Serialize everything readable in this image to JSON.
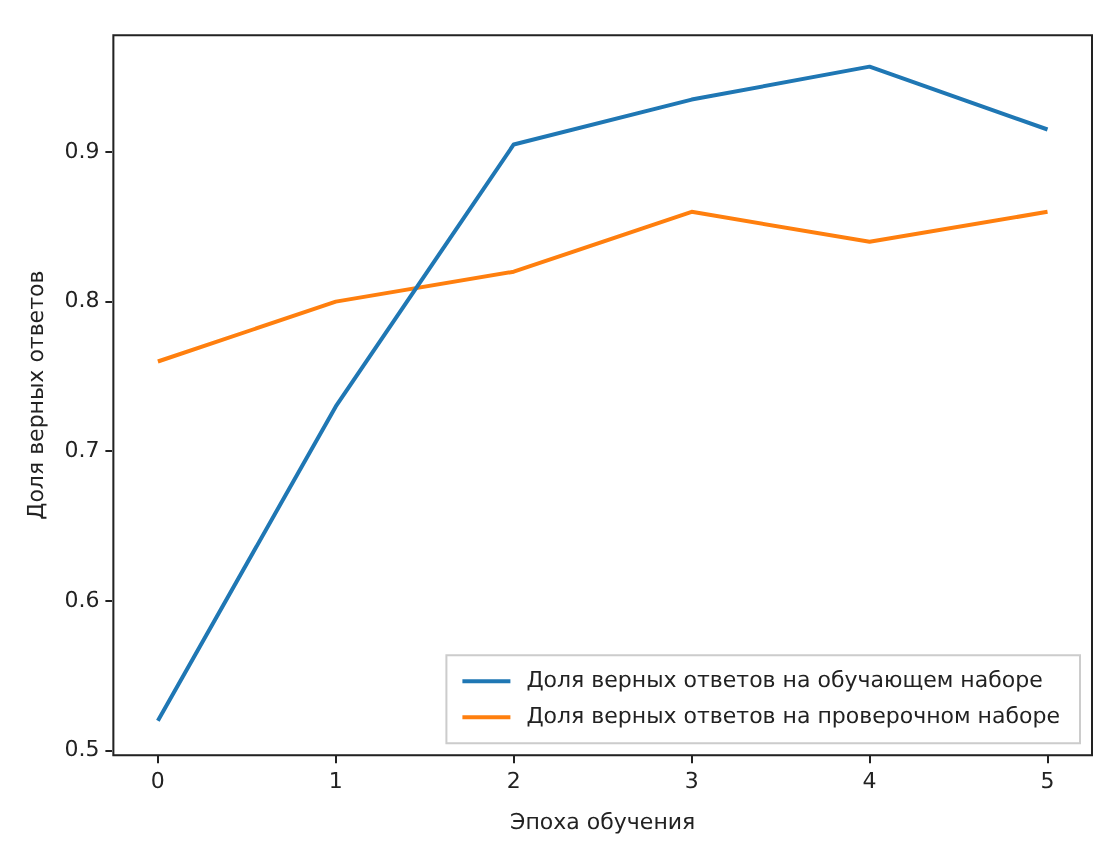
{
  "chart_data": {
    "type": "line",
    "xlabel": "Эпоха обучения",
    "ylabel": "Доля верных ответов",
    "x": [
      0,
      1,
      2,
      3,
      4,
      5
    ],
    "series": [
      {
        "name": "Доля верных ответов на обучающем наборе",
        "color": "#1f77b4",
        "values": [
          0.52,
          0.73,
          0.905,
          0.935,
          0.957,
          0.915
        ]
      },
      {
        "name": "Доля верных ответов на проверочном наборе",
        "color": "#ff7f0e",
        "values": [
          0.76,
          0.8,
          0.82,
          0.86,
          0.84,
          0.86
        ]
      }
    ],
    "xlim": [
      -0.25,
      5.25
    ],
    "ylim": [
      0.497,
      0.978
    ],
    "xticks": [
      0,
      1,
      2,
      3,
      4,
      5
    ],
    "yticks": [
      {
        "value": 0.5,
        "label": "0.5"
      },
      {
        "value": 0.6,
        "label": "0.6"
      },
      {
        "value": 0.7,
        "label": "0.7"
      },
      {
        "value": 0.8,
        "label": "0.8"
      },
      {
        "value": 0.9,
        "label": "0.9"
      }
    ],
    "legend": "bottom right",
    "grid": false,
    "marker": "none",
    "line_style": "solid"
  }
}
